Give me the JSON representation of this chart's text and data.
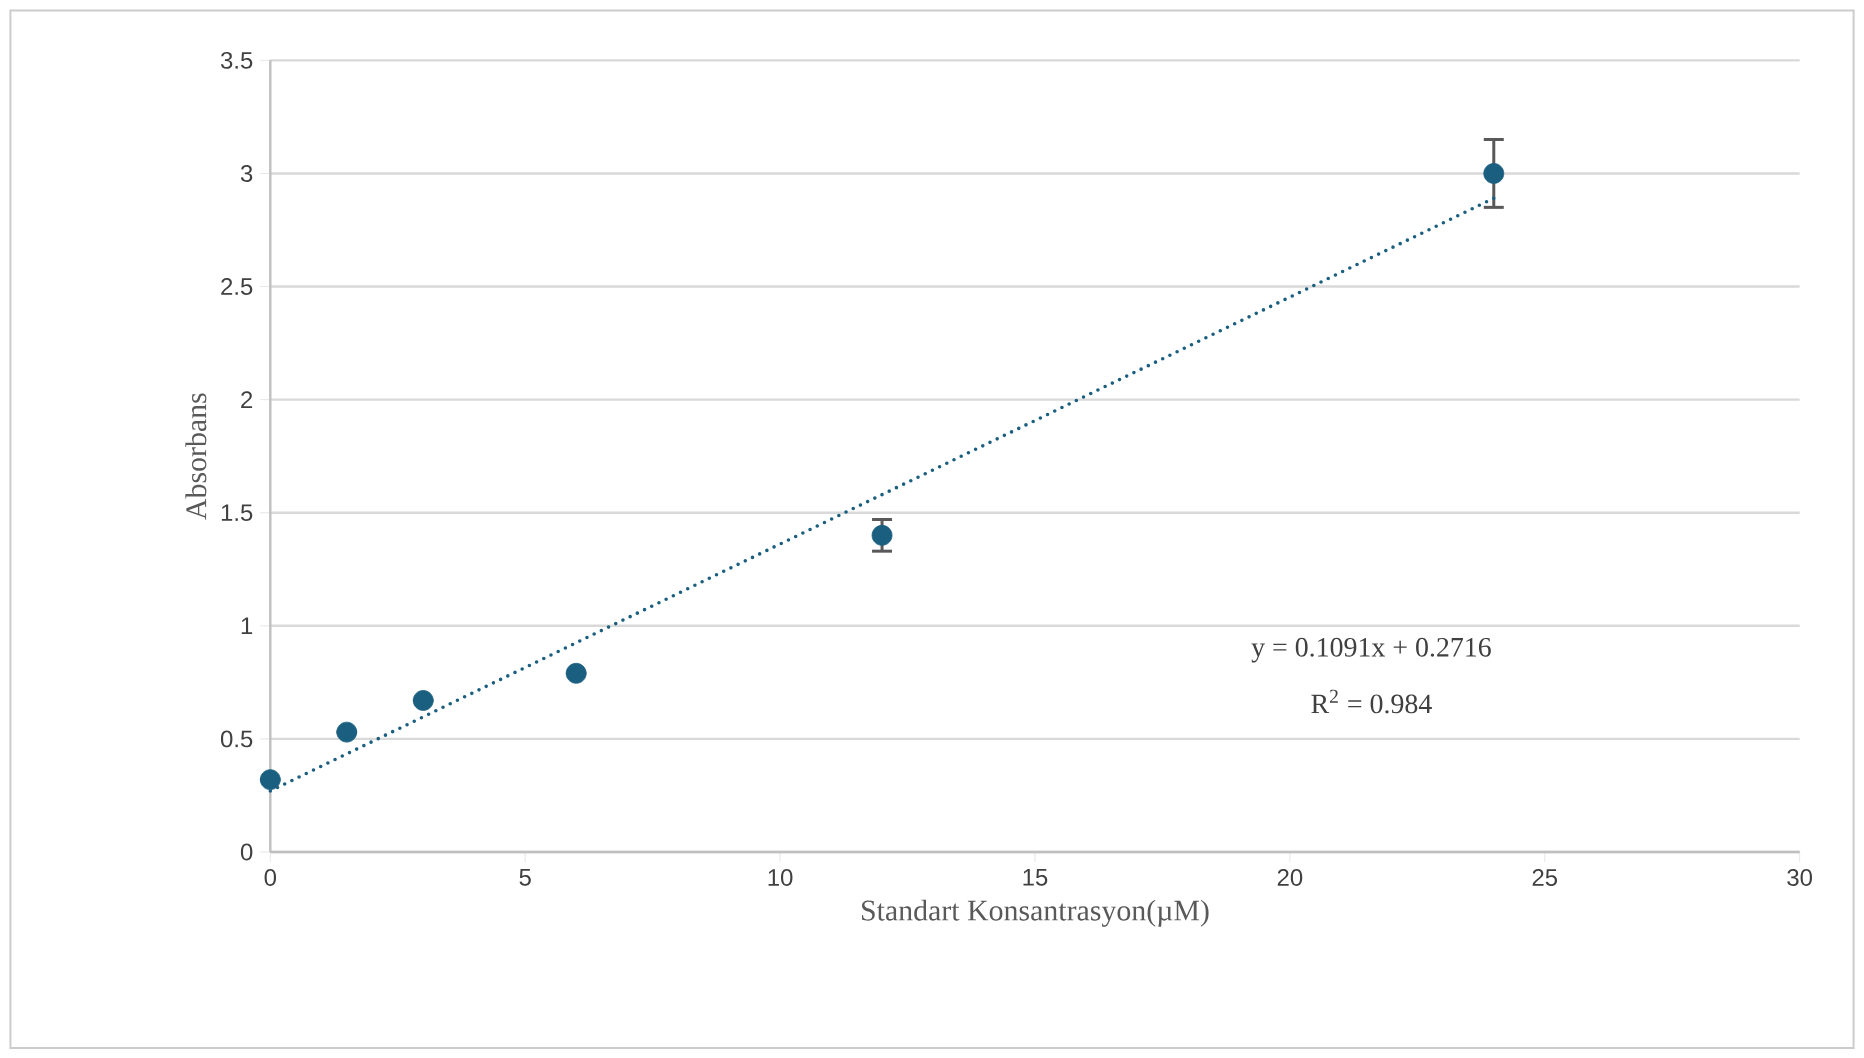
{
  "chart_data": {
    "type": "scatter",
    "xlabel": "Standart Konsantrasyon(µM)",
    "ylabel": "Absorbans",
    "x": [
      0,
      1.5,
      3,
      6,
      12,
      24
    ],
    "series": [
      {
        "color": "#1a5f80",
        "marker": "circle",
        "values": [
          0.32,
          0.53,
          0.67,
          0.79,
          1.4,
          3.0
        ],
        "errors": [
          null,
          null,
          null,
          null,
          0.07,
          0.15
        ]
      },
      {
        "type": "line",
        "color": "#1a5f80",
        "line_style": "dotted",
        "marker": "none",
        "x": [
          0,
          24
        ],
        "values": [
          0.27,
          2.89
        ]
      }
    ],
    "xlim": [
      0,
      30
    ],
    "xticks": [
      0,
      5,
      10,
      15,
      20,
      25,
      30
    ],
    "ylim": [
      0,
      3.5
    ],
    "yticks": [
      0,
      0.5,
      1,
      1.5,
      2,
      2.5,
      3,
      3.5
    ],
    "grid": "y",
    "annotations": [
      "y = 0.1091x + 0.2716",
      "R$^{2}$ = 0.984"
    ]
  }
}
